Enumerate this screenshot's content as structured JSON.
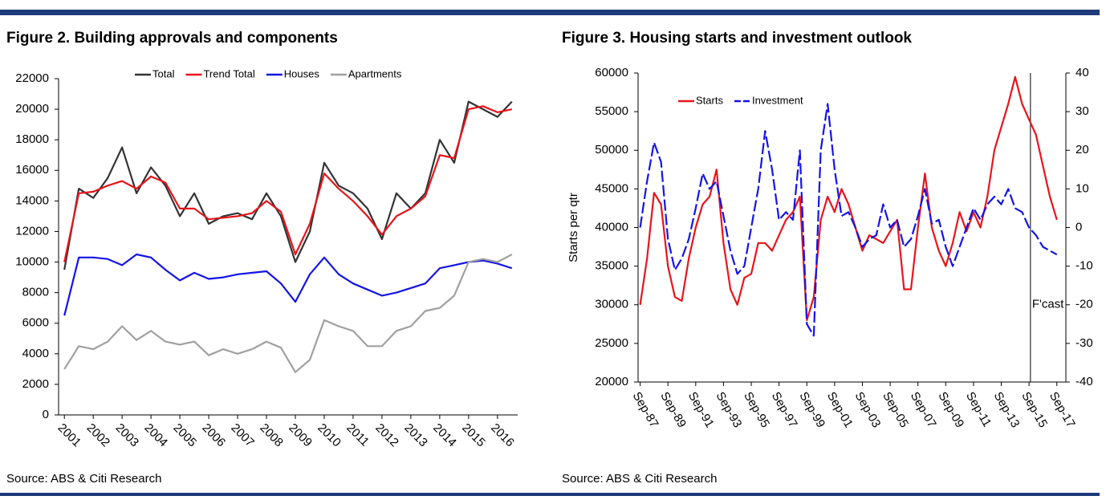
{
  "chart_data": [
    {
      "type": "line",
      "title": "Figure 2. Building approvals and components",
      "source": "Source: ABS & Citi Research",
      "legend": "top",
      "x": [
        2001,
        2001.5,
        2002,
        2002.5,
        2003,
        2003.5,
        2004,
        2004.5,
        2005,
        2005.5,
        2006,
        2006.5,
        2007,
        2007.5,
        2008,
        2008.5,
        2009,
        2009.5,
        2010,
        2010.5,
        2011,
        2011.5,
        2012,
        2012.5,
        2013,
        2013.5,
        2014,
        2014.5,
        2015,
        2015.5,
        2016,
        2016.5
      ],
      "xlim": [
        2000.8,
        2016.7
      ],
      "xticks": [
        2001,
        2002,
        2003,
        2004,
        2005,
        2006,
        2007,
        2008,
        2009,
        2010,
        2011,
        2012,
        2013,
        2014,
        2015,
        2016
      ],
      "ylim": [
        0,
        22000
      ],
      "yticks": [
        0,
        2000,
        4000,
        6000,
        8000,
        10000,
        12000,
        14000,
        16000,
        18000,
        20000,
        22000
      ],
      "series": [
        {
          "name": "Total",
          "color": "#333333",
          "values": [
            9500,
            14800,
            14200,
            15500,
            17500,
            14500,
            16200,
            15000,
            13000,
            14500,
            12500,
            13000,
            13200,
            12800,
            14500,
            13000,
            10000,
            12000,
            16500,
            15000,
            14500,
            13500,
            11500,
            14500,
            13500,
            14500,
            18000,
            16500,
            20500,
            20000,
            19500,
            20500
          ]
        },
        {
          "name": "Trend Total",
          "color": "#e8141b",
          "values": [
            10000,
            14500,
            14600,
            15000,
            15300,
            14800,
            15600,
            15200,
            13500,
            13500,
            12800,
            12900,
            13000,
            13200,
            14000,
            13300,
            10500,
            12500,
            15800,
            14800,
            14000,
            13000,
            11800,
            13000,
            13500,
            14300,
            17000,
            16800,
            20000,
            20200,
            19800,
            20000
          ]
        },
        {
          "name": "Houses",
          "color": "#1414e6",
          "values": [
            6500,
            10300,
            10300,
            10200,
            9800,
            10500,
            10300,
            9500,
            8800,
            9300,
            8900,
            9000,
            9200,
            9300,
            9400,
            8600,
            7400,
            9200,
            10300,
            9200,
            8600,
            8200,
            7800,
            8000,
            8300,
            8600,
            9600,
            9800,
            10000,
            10100,
            9900,
            9600
          ]
        },
        {
          "name": "Apartments",
          "color": "#a0a0a0",
          "values": [
            3000,
            4500,
            4300,
            4800,
            5800,
            4900,
            5500,
            4800,
            4600,
            4800,
            3900,
            4300,
            4000,
            4300,
            4800,
            4400,
            2800,
            3600,
            6200,
            5800,
            5500,
            4500,
            4500,
            5500,
            5800,
            6800,
            7000,
            7800,
            10000,
            10200,
            10000,
            10500
          ]
        }
      ]
    },
    {
      "type": "line",
      "title": "Figure 3. Housing starts and investment outlook",
      "source": "Source: ABS & Citi Research",
      "y_label": "Starts per qtr",
      "legend": "top-left",
      "annotations": [
        {
          "text": "F'cast",
          "x": 2015.85
        }
      ],
      "x": [
        1987.75,
        1988.25,
        1988.75,
        1989.25,
        1989.75,
        1990.25,
        1990.75,
        1991.25,
        1991.75,
        1992.25,
        1992.75,
        1993.25,
        1993.75,
        1994.25,
        1994.75,
        1995.25,
        1995.75,
        1996.25,
        1996.75,
        1997.25,
        1997.75,
        1998.25,
        1998.75,
        1999.25,
        1999.75,
        2000.25,
        2000.75,
        2001.25,
        2001.75,
        2002.25,
        2002.75,
        2003.25,
        2003.75,
        2004.25,
        2004.75,
        2005.25,
        2005.75,
        2006.25,
        2006.75,
        2007.25,
        2007.75,
        2008.25,
        2008.75,
        2009.25,
        2009.75,
        2010.25,
        2010.75,
        2011.25,
        2011.75,
        2012.25,
        2012.75,
        2013.25,
        2013.75,
        2014.25,
        2014.75,
        2015.25,
        2015.75,
        2016.25,
        2016.75,
        2017.25,
        2017.75
      ],
      "xlim": [
        1987.6,
        2018.4
      ],
      "xticks": [
        {
          "value": 1987.75,
          "label": "Sep-87"
        },
        {
          "value": 1989.75,
          "label": "Sep-89"
        },
        {
          "value": 1991.75,
          "label": "Sep-91"
        },
        {
          "value": 1993.75,
          "label": "Sep-93"
        },
        {
          "value": 1995.75,
          "label": "Sep-95"
        },
        {
          "value": 1997.75,
          "label": "Sep-97"
        },
        {
          "value": 1999.75,
          "label": "Sep-99"
        },
        {
          "value": 2001.75,
          "label": "Sep-01"
        },
        {
          "value": 2003.75,
          "label": "Sep-03"
        },
        {
          "value": 2005.75,
          "label": "Sep-05"
        },
        {
          "value": 2007.75,
          "label": "Sep-07"
        },
        {
          "value": 2009.75,
          "label": "Sep-09"
        },
        {
          "value": 2011.75,
          "label": "Sep-11"
        },
        {
          "value": 2013.75,
          "label": "Sep-13"
        },
        {
          "value": 2015.75,
          "label": "Sep-15"
        },
        {
          "value": 2017.75,
          "label": "Sep-17"
        }
      ],
      "ylim": [
        20000,
        60000
      ],
      "yticks": [
        20000,
        25000,
        30000,
        35000,
        40000,
        45000,
        50000,
        55000,
        60000
      ],
      "y2lim": [
        -40,
        40
      ],
      "y2ticks": [
        -40,
        -30,
        -20,
        -10,
        0,
        10,
        20,
        30,
        40
      ],
      "series": [
        {
          "name": "Starts",
          "color": "#e8141b",
          "values": [
            30000,
            36000,
            44500,
            43000,
            35000,
            31000,
            30500,
            36000,
            40000,
            43000,
            44000,
            47500,
            38000,
            32000,
            30000,
            33500,
            34000,
            38000,
            38000,
            37000,
            39000,
            41000,
            42000,
            44000,
            28000,
            31000,
            41000,
            44000,
            42000,
            45000,
            43000,
            40000,
            37000,
            39000,
            38500,
            38000,
            39500,
            41000,
            32000,
            32000,
            40000,
            47000,
            40000,
            37000,
            35000,
            38000,
            42000,
            39500,
            42000,
            40000,
            44000,
            50000,
            53000,
            56000,
            59500,
            56000,
            54000,
            52000,
            48000,
            44000,
            41000
          ]
        },
        {
          "name": "Investment",
          "color": "#1414e6",
          "axis": "y2",
          "dashed": true,
          "values": [
            0,
            12,
            22,
            17,
            -3,
            -11,
            -8,
            -3,
            5,
            14,
            10,
            12,
            3,
            -6,
            -12,
            -10,
            0,
            10,
            25,
            15,
            2,
            4,
            2,
            20,
            -25,
            -28,
            20,
            32,
            15,
            3,
            4,
            0,
            -5,
            -3,
            -2,
            6,
            0,
            2,
            -5,
            -3,
            3,
            10,
            1,
            2,
            -5,
            -10,
            -5,
            0,
            5,
            2,
            6,
            8,
            6,
            10,
            5,
            4,
            0,
            -2,
            -5,
            -6,
            -7
          ]
        }
      ]
    }
  ]
}
